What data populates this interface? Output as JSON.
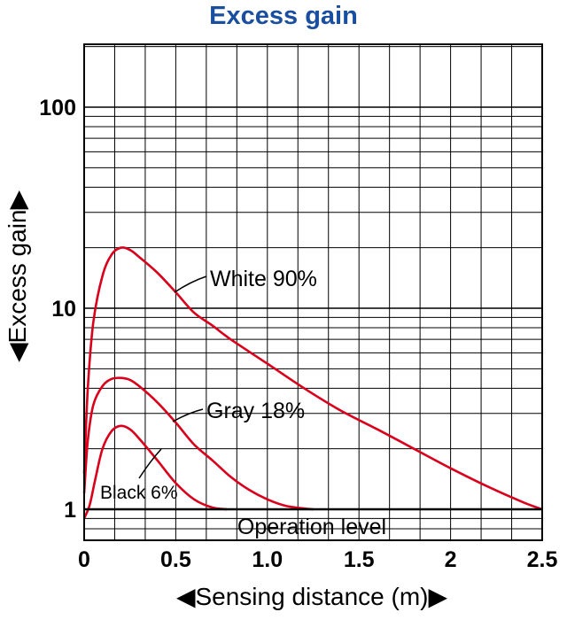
{
  "chart_data": {
    "type": "line",
    "title": "Excess gain",
    "xlabel": "◀Sensing distance (m)▶",
    "ylabel": "◀Excess gain▶",
    "x_scale": "linear",
    "y_scale": "log",
    "xlim": [
      0,
      2.5
    ],
    "ylim": [
      0.7,
      220
    ],
    "x_ticks": [
      "0",
      "0.5",
      "1.0",
      "1.5",
      "2",
      "2.5"
    ],
    "x_tick_values": [
      0,
      0.5,
      1.0,
      1.5,
      2,
      2.5
    ],
    "y_ticks": [
      "1",
      "10",
      "100"
    ],
    "y_tick_values": [
      1,
      10,
      100
    ],
    "grid": true,
    "reference_line": {
      "label": "Operation level",
      "y": 1
    },
    "series": [
      {
        "name": "White 90%",
        "color": "#d9001b",
        "x": [
          0,
          0.02,
          0.05,
          0.1,
          0.15,
          0.2,
          0.25,
          0.3,
          0.4,
          0.5,
          0.6,
          0.7,
          0.8,
          1.0,
          1.2,
          1.4,
          1.6,
          1.8,
          2.0,
          2.2,
          2.4,
          2.5
        ],
        "y": [
          1.5,
          4.0,
          8.5,
          14.5,
          18.5,
          20,
          19.5,
          18,
          15,
          12,
          9.5,
          8.2,
          7.0,
          5.3,
          4.0,
          3.1,
          2.5,
          2.0,
          1.6,
          1.3,
          1.08,
          1.0
        ]
      },
      {
        "name": "Gray 18%",
        "color": "#d9001b",
        "x": [
          0,
          0.02,
          0.05,
          0.1,
          0.15,
          0.2,
          0.25,
          0.3,
          0.4,
          0.5,
          0.6,
          0.7,
          0.8,
          0.9,
          1.0,
          1.1,
          1.2,
          1.25
        ],
        "y": [
          1.2,
          2.2,
          3.3,
          4.1,
          4.45,
          4.5,
          4.4,
          4.1,
          3.4,
          2.7,
          2.1,
          1.75,
          1.45,
          1.25,
          1.12,
          1.04,
          1.01,
          1.0
        ]
      },
      {
        "name": "Black 6%",
        "color": "#d9001b",
        "x": [
          0,
          0.03,
          0.06,
          0.1,
          0.15,
          0.2,
          0.25,
          0.3,
          0.4,
          0.5,
          0.6,
          0.7,
          0.78
        ],
        "y": [
          0.9,
          1.05,
          1.4,
          2.0,
          2.45,
          2.6,
          2.5,
          2.25,
          1.75,
          1.35,
          1.12,
          1.02,
          1.0
        ]
      }
    ],
    "annotations": [
      "White 90%",
      "Gray 18%",
      "Black 6%",
      "Operation level"
    ]
  }
}
